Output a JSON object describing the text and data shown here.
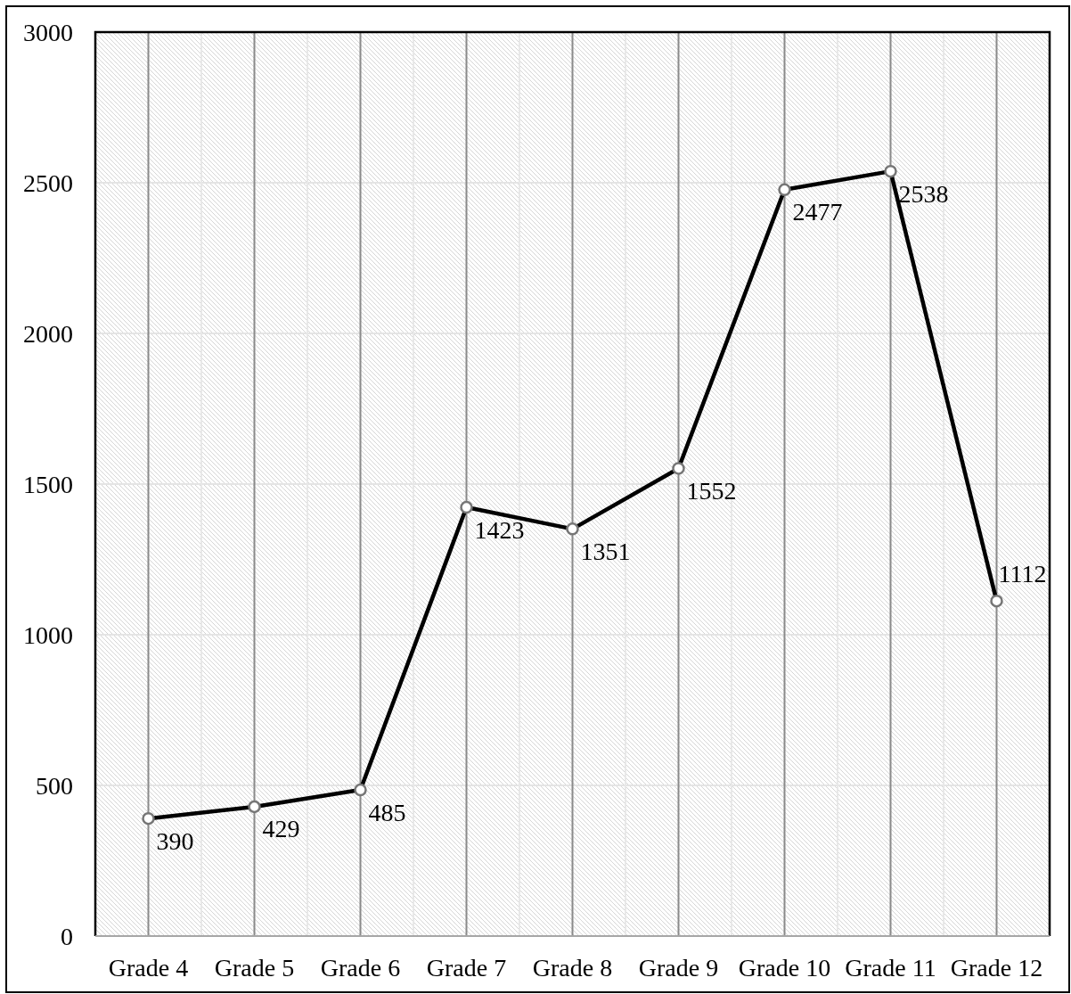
{
  "chart_data": {
    "type": "line",
    "categories": [
      "Grade 4",
      "Grade 5",
      "Grade 6",
      "Grade 7",
      "Grade 8",
      "Grade 9",
      "Grade 10",
      "Grade 11",
      "Grade 12"
    ],
    "series": [
      {
        "color": "#000000",
        "values": [
          390,
          429,
          485,
          1423,
          1351,
          1552,
          2477,
          2538,
          1112
        ]
      }
    ],
    "ylim": [
      0,
      3000
    ],
    "yticks": [
      0,
      500,
      1000,
      1500,
      2000,
      2500,
      3000
    ],
    "grid": true,
    "marker": "circle",
    "line_style": "solid",
    "data_labels": true
  }
}
